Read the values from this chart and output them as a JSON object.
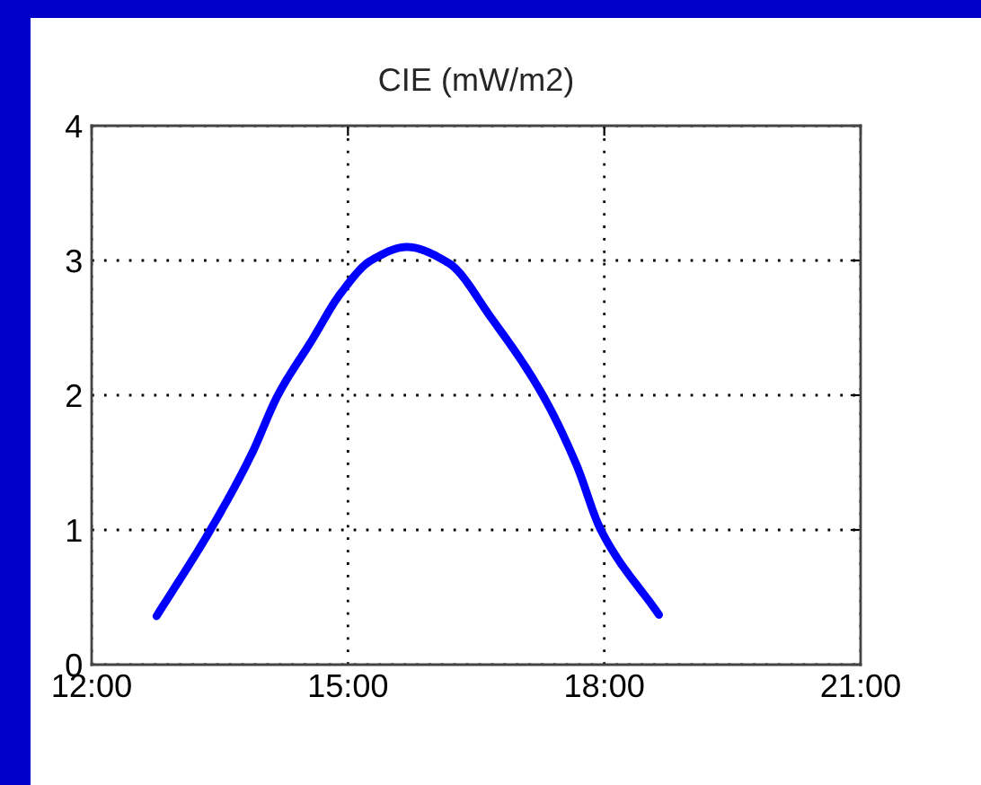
{
  "chart_data": {
    "type": "line",
    "title": "CIE (mW/m2)",
    "x": [
      12.76,
      13.39,
      13.87,
      14.18,
      14.57,
      14.92,
      15.27,
      15.69,
      16.18,
      16.67,
      17.28,
      17.67,
      17.96,
      18.64
    ],
    "series": [
      {
        "color": "#0000ff",
        "values": [
          0.36,
          1.0,
          1.56,
          2.0,
          2.4,
          2.76,
          3.0,
          3.1,
          2.98,
          2.58,
          2.0,
          1.49,
          1.0,
          0.37
        ]
      }
    ],
    "xlim": [
      12,
      21
    ],
    "xticks": [
      {
        "value": 12,
        "label": "12:00"
      },
      {
        "value": 15,
        "label": "15:00"
      },
      {
        "value": 18,
        "label": "18:00"
      },
      {
        "value": 21,
        "label": "21:00"
      }
    ],
    "ylim": [
      0,
      4
    ],
    "yticks": [
      0,
      1,
      2,
      3,
      4
    ],
    "grid": true,
    "marker": "none"
  }
}
